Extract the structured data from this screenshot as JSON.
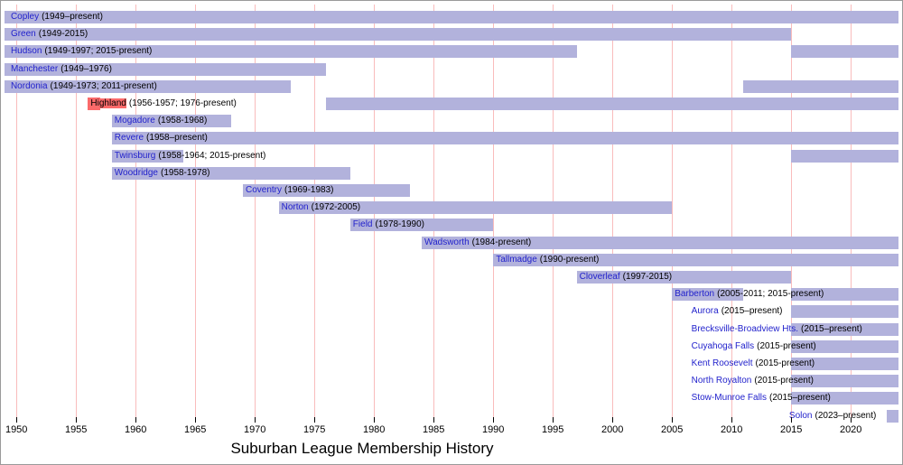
{
  "colors": {
    "bar": "#b2b2dc",
    "highlight": "#fb6a6a",
    "grid_line": "#f9bcbc",
    "team_link": "#2222cc",
    "text": "#000000"
  },
  "chart_data": {
    "type": "bar",
    "variant": "gantt-timeline",
    "title": "Suburban League Membership History",
    "xlim": [
      1949,
      2024
    ],
    "x_ticks": [
      "1950",
      "1955",
      "1960",
      "1965",
      "1970",
      "1975",
      "1980",
      "1985",
      "1990",
      "1995",
      "2000",
      "2005",
      "2010",
      "2015",
      "2020"
    ],
    "grid": true,
    "legend": false,
    "rows": [
      {
        "team": "Copley",
        "years": "(1949–present)",
        "segments": [
          [
            1949,
            2024
          ]
        ],
        "label_year": 1949.3,
        "highlight": false
      },
      {
        "team": "Green",
        "years": "(1949-2015)",
        "segments": [
          [
            1949,
            2015
          ]
        ],
        "label_year": 1949.3,
        "highlight": false
      },
      {
        "team": "Hudson",
        "years": "(1949-1997; 2015-present)",
        "segments": [
          [
            1949,
            1997
          ],
          [
            2015,
            2024
          ]
        ],
        "label_year": 1949.3,
        "highlight": false
      },
      {
        "team": "Manchester",
        "years": "(1949–1976)",
        "segments": [
          [
            1949,
            1976
          ]
        ],
        "label_year": 1949.3,
        "highlight": false
      },
      {
        "team": "Nordonia",
        "years": "(1949-1973; 2011-present)",
        "segments": [
          [
            1949,
            1973
          ],
          [
            2011,
            2024
          ]
        ],
        "label_year": 1949.3,
        "highlight": false
      },
      {
        "team": "Highland",
        "years": "(1956-1957; 1976-present)",
        "segments": [
          [
            1956,
            1957,
            "highlight"
          ],
          [
            1976,
            2024
          ]
        ],
        "label_year": 1956,
        "highlight": true
      },
      {
        "team": "Mogadore",
        "years": "(1958-1968)",
        "segments": [
          [
            1958,
            1968
          ]
        ],
        "label_year": 1958,
        "highlight": false
      },
      {
        "team": "Revere",
        "years": "(1958–present)",
        "segments": [
          [
            1958,
            2024
          ]
        ],
        "label_year": 1958,
        "highlight": false
      },
      {
        "team": "Twinsburg",
        "years": "(1958-1964; 2015-present)",
        "segments": [
          [
            1958,
            1964
          ],
          [
            2015,
            2024
          ]
        ],
        "label_year": 1958,
        "highlight": false
      },
      {
        "team": "Woodridge",
        "years": "(1958-1978)",
        "segments": [
          [
            1958,
            1978
          ]
        ],
        "label_year": 1958,
        "highlight": false
      },
      {
        "team": "Coventry",
        "years": "(1969-1983)",
        "segments": [
          [
            1969,
            1983
          ]
        ],
        "label_year": 1969,
        "highlight": false
      },
      {
        "team": "Norton",
        "years": "(1972-2005)",
        "segments": [
          [
            1972,
            2005
          ]
        ],
        "label_year": 1972,
        "highlight": false
      },
      {
        "team": "Field",
        "years": "(1978-1990)",
        "segments": [
          [
            1978,
            1990
          ]
        ],
        "label_year": 1978,
        "highlight": false
      },
      {
        "team": "Wadsworth",
        "years": "(1984-present)",
        "segments": [
          [
            1984,
            2024
          ]
        ],
        "label_year": 1984,
        "highlight": false
      },
      {
        "team": "Tallmadge",
        "years": "(1990-present)",
        "segments": [
          [
            1990,
            2024
          ]
        ],
        "label_year": 1990,
        "highlight": false
      },
      {
        "team": "Cloverleaf",
        "years": "(1997-2015)",
        "segments": [
          [
            1997,
            2015
          ]
        ],
        "label_year": 1997,
        "highlight": false
      },
      {
        "team": "Barberton",
        "years": "(2005-2011; 2015-present)",
        "segments": [
          [
            2005,
            2011
          ],
          [
            2015,
            2024
          ]
        ],
        "label_year": 2005,
        "highlight": false
      },
      {
        "team": "Aurora",
        "years": "(2015–present)",
        "segments": [
          [
            2015,
            2024
          ]
        ],
        "label_year": 2006.4,
        "highlight": false
      },
      {
        "team": "Brecksville-Broadview Hts.",
        "years": "(2015–present)",
        "segments": [
          [
            2015,
            2024
          ]
        ],
        "label_year": 2006.4,
        "highlight": false
      },
      {
        "team": "Cuyahoga Falls",
        "years": "(2015-present)",
        "segments": [
          [
            2015,
            2024
          ]
        ],
        "label_year": 2006.4,
        "highlight": false
      },
      {
        "team": "Kent Roosevelt",
        "years": "(2015-present)",
        "segments": [
          [
            2015,
            2024
          ]
        ],
        "label_year": 2006.4,
        "highlight": false
      },
      {
        "team": "North Royalton",
        "years": "(2015-present)",
        "segments": [
          [
            2015,
            2024
          ]
        ],
        "label_year": 2006.4,
        "highlight": false
      },
      {
        "team": "Stow-Munroe Falls",
        "years": "(2015–present)",
        "segments": [
          [
            2015,
            2024
          ]
        ],
        "label_year": 2006.4,
        "highlight": false
      },
      {
        "team": "Solon",
        "years": "(2023–present)",
        "segments": [
          [
            2023,
            2024
          ]
        ],
        "label_year": 2014.6,
        "highlight": false
      }
    ]
  }
}
